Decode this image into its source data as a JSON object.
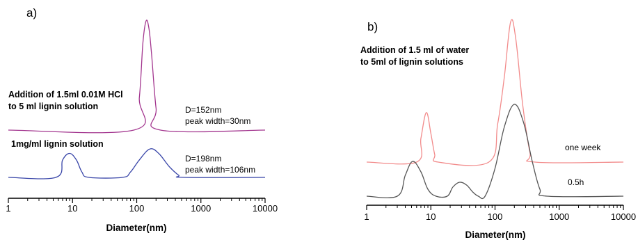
{
  "chart_data": [
    {
      "panel_label": "a)",
      "type": "line",
      "xlabel": "Diameter(nm)",
      "xscale": "log",
      "xlim": [
        1,
        10000
      ],
      "x_ticks": [
        1,
        10,
        100,
        1000,
        10000
      ],
      "x_tick_labels": [
        "1",
        "10",
        "100",
        "1000",
        "10000"
      ],
      "grid": false,
      "yaxis_visible": false,
      "annotations": {
        "top_label_line1": "Addition of 1.5ml 0.01M HCl",
        "top_label_line2": "to 5 ml lignin solution",
        "top_d": "D=152nm",
        "top_width": "peak width=30nm",
        "bottom_label": "1mg/ml  lignin solution",
        "bottom_d": "D=198nm",
        "bottom_width": "peak width=106nm"
      },
      "series": [
        {
          "color": "#a3368f",
          "offset": 1.0,
          "points": [
            [
              1,
              0
            ],
            [
              90,
              0
            ],
            [
              110,
              0.3
            ],
            [
              125,
              0.8
            ],
            [
              140,
              1.0
            ],
            [
              155,
              0.93
            ],
            [
              170,
              0.7
            ],
            [
              200,
              0.2
            ],
            [
              235,
              0
            ],
            [
              10000,
              0
            ]
          ]
        },
        {
          "color": "#3845a8",
          "offset": 0.0,
          "points": [
            [
              1,
              0
            ],
            [
              5.5,
              0
            ],
            [
              7,
              0.16
            ],
            [
              9,
              0.22
            ],
            [
              11.5,
              0.16
            ],
            [
              14,
              0.05
            ],
            [
              18,
              0
            ],
            [
              60,
              0
            ],
            [
              80,
              0.05
            ],
            [
              110,
              0.16
            ],
            [
              160,
              0.26
            ],
            [
              220,
              0.22
            ],
            [
              320,
              0.1
            ],
            [
              450,
              0.02
            ],
            [
              550,
              0
            ],
            [
              10000,
              0
            ]
          ]
        }
      ]
    },
    {
      "panel_label": "b)",
      "type": "line",
      "xlabel": "Diameter(nm)",
      "xscale": "log",
      "xlim": [
        1,
        10000
      ],
      "x_ticks": [
        1,
        10,
        100,
        1000,
        10000
      ],
      "x_tick_labels": [
        "1",
        "10",
        "100",
        "1000",
        "10000"
      ],
      "grid": false,
      "yaxis_visible": false,
      "annotations": {
        "title_line1": "Addition of 1.5 ml of water",
        "title_line2": "to 5ml of lignin solutions",
        "series_a_label": "one week",
        "series_b_label": "0.5h"
      },
      "series": [
        {
          "label": "one week",
          "color": "#f28b8b",
          "offset": 1.0,
          "points": [
            [
              1,
              0
            ],
            [
              6,
              0
            ],
            [
              7,
              0.25
            ],
            [
              8.5,
              0.52
            ],
            [
              10,
              0.3
            ],
            [
              11.5,
              0.08
            ],
            [
              13,
              0
            ],
            [
              80,
              0
            ],
            [
              110,
              0.4
            ],
            [
              140,
              0.9
            ],
            [
              175,
              1.47
            ],
            [
              210,
              1.3
            ],
            [
              270,
              0.6
            ],
            [
              350,
              0.1
            ],
            [
              420,
              0
            ],
            [
              10000,
              0
            ]
          ]
        },
        {
          "label": "0.5h",
          "color": "#555555",
          "offset": 0.0,
          "points": [
            [
              1,
              0
            ],
            [
              3,
              0
            ],
            [
              4,
              0.3
            ],
            [
              5.2,
              0.5
            ],
            [
              7,
              0.35
            ],
            [
              9,
              0.1
            ],
            [
              12,
              0
            ],
            [
              18,
              0
            ],
            [
              22,
              0.13
            ],
            [
              28,
              0.2
            ],
            [
              36,
              0.16
            ],
            [
              45,
              0.06
            ],
            [
              55,
              0
            ],
            [
              70,
              0
            ],
            [
              100,
              0.4
            ],
            [
              140,
              1.0
            ],
            [
              200,
              1.32
            ],
            [
              280,
              1.05
            ],
            [
              380,
              0.5
            ],
            [
              500,
              0.1
            ],
            [
              650,
              0
            ],
            [
              10000,
              0
            ]
          ]
        }
      ]
    }
  ]
}
